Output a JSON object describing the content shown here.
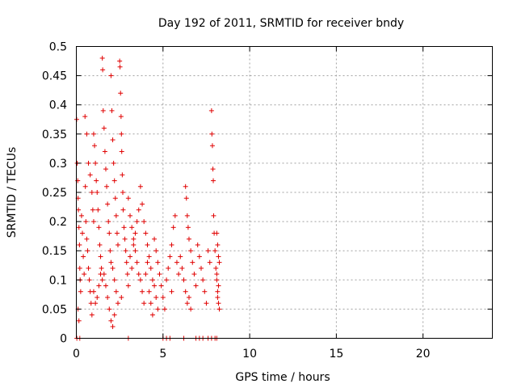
{
  "chart_data": {
    "type": "scatter",
    "title": "Day 192 of 2011, SRMTID for receiver bndy",
    "xlabel": "GPS time / hours",
    "ylabel": "SRMTID / TECUs",
    "xlim": [
      0,
      24
    ],
    "ylim": [
      0,
      0.5
    ],
    "x_ticks": [
      0,
      5,
      10,
      15,
      20
    ],
    "y_ticks": [
      0,
      0.05,
      0.1,
      0.15,
      0.2,
      0.25,
      0.3,
      0.35,
      0.4,
      0.45,
      0.5
    ],
    "x_tick_labels": [
      "0",
      "5",
      "10",
      "15",
      "20"
    ],
    "y_tick_labels": [
      "0",
      "0.05",
      "0.1",
      "0.15",
      "0.2",
      "0.25",
      "0.3",
      "0.35",
      "0.4",
      "0.45",
      "0.5"
    ],
    "grid": true,
    "marker": "+",
    "color": "#e00000",
    "series": [
      {
        "name": "SRMTID",
        "points": [
          [
            0.02,
            0.375
          ],
          [
            0.05,
            0.3
          ],
          [
            0.08,
            0.27
          ],
          [
            0.1,
            0.24
          ],
          [
            0.12,
            0.22
          ],
          [
            0.15,
            0.19
          ],
          [
            0.18,
            0.16
          ],
          [
            0.2,
            0.12
          ],
          [
            0.22,
            0.1
          ],
          [
            0.25,
            0.08
          ],
          [
            0.1,
            0.05
          ],
          [
            0.15,
            0.03
          ],
          [
            0.3,
            0.21
          ],
          [
            0.35,
            0.18
          ],
          [
            0.4,
            0.14
          ],
          [
            0.45,
            0.11
          ],
          [
            0.5,
            0.38
          ],
          [
            0.52,
            0.26
          ],
          [
            0.55,
            0.2
          ],
          [
            0.6,
            0.17
          ],
          [
            0.65,
            0.15
          ],
          [
            0.7,
            0.12
          ],
          [
            0.75,
            0.1
          ],
          [
            0.8,
            0.08
          ],
          [
            0.85,
            0.06
          ],
          [
            0.9,
            0.04
          ],
          [
            0.6,
            0.35
          ],
          [
            0.7,
            0.3
          ],
          [
            0.8,
            0.28
          ],
          [
            0.9,
            0.25
          ],
          [
            0.95,
            0.22
          ],
          [
            1.0,
            0.2
          ],
          [
            1.0,
            0.35
          ],
          [
            1.05,
            0.33
          ],
          [
            1.1,
            0.3
          ],
          [
            1.15,
            0.27
          ],
          [
            1.2,
            0.25
          ],
          [
            1.25,
            0.22
          ],
          [
            1.3,
            0.19
          ],
          [
            1.35,
            0.16
          ],
          [
            1.4,
            0.14
          ],
          [
            1.45,
            0.12
          ],
          [
            1.5,
            0.1
          ],
          [
            1.0,
            0.08
          ],
          [
            1.1,
            0.06
          ],
          [
            1.2,
            0.07
          ],
          [
            1.3,
            0.09
          ],
          [
            1.4,
            0.11
          ],
          [
            1.5,
            0.48
          ],
          [
            1.52,
            0.46
          ],
          [
            1.55,
            0.39
          ],
          [
            1.6,
            0.36
          ],
          [
            1.65,
            0.32
          ],
          [
            1.7,
            0.29
          ],
          [
            1.75,
            0.26
          ],
          [
            1.8,
            0.23
          ],
          [
            1.85,
            0.2
          ],
          [
            1.9,
            0.18
          ],
          [
            1.95,
            0.15
          ],
          [
            2.0,
            0.13
          ],
          [
            1.6,
            0.11
          ],
          [
            1.7,
            0.09
          ],
          [
            1.8,
            0.07
          ],
          [
            1.9,
            0.05
          ],
          [
            2.0,
            0.45
          ],
          [
            2.05,
            0.39
          ],
          [
            2.1,
            0.34
          ],
          [
            2.15,
            0.3
          ],
          [
            2.2,
            0.27
          ],
          [
            2.25,
            0.24
          ],
          [
            2.3,
            0.21
          ],
          [
            2.35,
            0.18
          ],
          [
            2.4,
            0.16
          ],
          [
            2.1,
            0.12
          ],
          [
            2.2,
            0.1
          ],
          [
            2.3,
            0.08
          ],
          [
            2.4,
            0.06
          ],
          [
            2.0,
            0.03
          ],
          [
            2.1,
            0.02
          ],
          [
            2.2,
            0.04
          ],
          [
            2.5,
            0.475
          ],
          [
            2.52,
            0.465
          ],
          [
            2.55,
            0.42
          ],
          [
            2.58,
            0.38
          ],
          [
            2.6,
            0.35
          ],
          [
            2.62,
            0.32
          ],
          [
            2.65,
            0.28
          ],
          [
            2.68,
            0.25
          ],
          [
            2.7,
            0.22
          ],
          [
            2.75,
            0.19
          ],
          [
            2.8,
            0.17
          ],
          [
            2.85,
            0.15
          ],
          [
            2.9,
            0.13
          ],
          [
            2.95,
            0.11
          ],
          [
            3.0,
            0.09
          ],
          [
            2.6,
            0.07
          ],
          [
            3.0,
            0.24
          ],
          [
            3.1,
            0.21
          ],
          [
            3.2,
            0.19
          ],
          [
            3.3,
            0.17
          ],
          [
            3.4,
            0.15
          ],
          [
            3.5,
            0.13
          ],
          [
            3.6,
            0.11
          ],
          [
            3.7,
            0.1
          ],
          [
            3.8,
            0.08
          ],
          [
            3.9,
            0.06
          ],
          [
            3.1,
            0.14
          ],
          [
            3.2,
            0.12
          ],
          [
            3.3,
            0.16
          ],
          [
            3.4,
            0.18
          ],
          [
            3.5,
            0.2
          ],
          [
            3.6,
            0.22
          ],
          [
            3.7,
            0.26
          ],
          [
            3.8,
            0.23
          ],
          [
            3.9,
            0.2
          ],
          [
            4.0,
            0.18
          ],
          [
            4.1,
            0.16
          ],
          [
            4.2,
            0.14
          ],
          [
            4.3,
            0.12
          ],
          [
            4.4,
            0.1
          ],
          [
            4.5,
            0.09
          ],
          [
            4.6,
            0.07
          ],
          [
            4.7,
            0.05
          ],
          [
            4.0,
            0.11
          ],
          [
            4.1,
            0.13
          ],
          [
            4.2,
            0.08
          ],
          [
            4.3,
            0.06
          ],
          [
            4.4,
            0.04
          ],
          [
            4.5,
            0.17
          ],
          [
            4.6,
            0.15
          ],
          [
            4.7,
            0.13
          ],
          [
            4.8,
            0.11
          ],
          [
            4.9,
            0.09
          ],
          [
            5.0,
            0.07
          ],
          [
            5.1,
            0.05
          ],
          [
            5.2,
            0.1
          ],
          [
            5.3,
            0.12
          ],
          [
            5.4,
            0.14
          ],
          [
            5.5,
            0.16
          ],
          [
            5.6,
            0.19
          ],
          [
            5.7,
            0.21
          ],
          [
            5.8,
            0.13
          ],
          [
            5.9,
            0.11
          ],
          [
            5.5,
            0.08
          ],
          [
            6.0,
            0.14
          ],
          [
            6.1,
            0.12
          ],
          [
            6.2,
            0.1
          ],
          [
            6.3,
            0.08
          ],
          [
            6.4,
            0.06
          ],
          [
            6.5,
            0.17
          ],
          [
            6.6,
            0.15
          ],
          [
            6.7,
            0.13
          ],
          [
            6.8,
            0.11
          ],
          [
            6.9,
            0.09
          ],
          [
            6.3,
            0.26
          ],
          [
            6.35,
            0.24
          ],
          [
            6.4,
            0.21
          ],
          [
            6.45,
            0.19
          ],
          [
            6.5,
            0.07
          ],
          [
            6.6,
            0.05
          ],
          [
            7.0,
            0.16
          ],
          [
            7.1,
            0.14
          ],
          [
            7.2,
            0.12
          ],
          [
            7.3,
            0.1
          ],
          [
            7.4,
            0.08
          ],
          [
            7.5,
            0.06
          ],
          [
            7.6,
            0.15
          ],
          [
            7.7,
            0.13
          ],
          [
            7.8,
            0.39
          ],
          [
            7.82,
            0.35
          ],
          [
            7.85,
            0.33
          ],
          [
            7.88,
            0.29
          ],
          [
            7.9,
            0.27
          ],
          [
            7.92,
            0.21
          ],
          [
            7.95,
            0.18
          ],
          [
            8.0,
            0.15
          ],
          [
            8.05,
            0.12
          ],
          [
            8.1,
            0.1
          ],
          [
            8.15,
            0.08
          ],
          [
            8.2,
            0.06
          ],
          [
            8.25,
            0.05
          ],
          [
            8.1,
            0.18
          ],
          [
            8.15,
            0.16
          ],
          [
            8.2,
            0.14
          ],
          [
            8.25,
            0.13
          ],
          [
            8.2,
            0.09
          ],
          [
            8.15,
            0.07
          ],
          [
            8.1,
            0.11
          ],
          [
            0.03,
            0.0
          ],
          [
            0.2,
            0.0
          ],
          [
            3.0,
            0.0
          ],
          [
            5.0,
            0.0
          ],
          [
            5.2,
            0.0
          ],
          [
            5.4,
            0.0
          ],
          [
            6.2,
            0.0
          ],
          [
            6.9,
            0.0
          ],
          [
            7.1,
            0.0
          ],
          [
            7.3,
            0.0
          ],
          [
            7.6,
            0.0
          ],
          [
            7.8,
            0.0
          ],
          [
            8.0,
            0.0
          ],
          [
            8.1,
            0.0
          ]
        ]
      }
    ]
  }
}
